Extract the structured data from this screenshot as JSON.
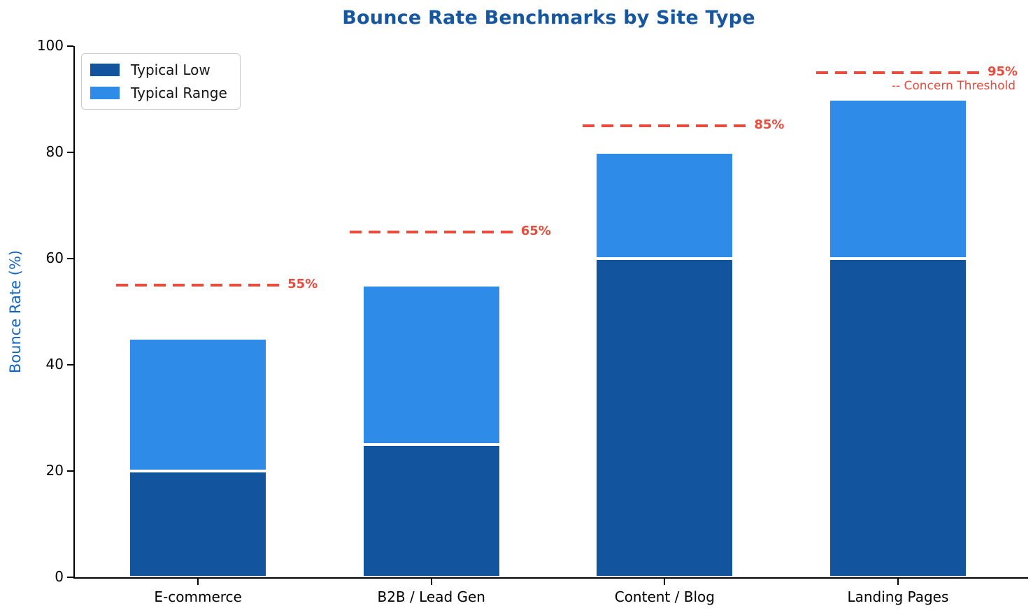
{
  "chart_data": {
    "type": "bar",
    "stacked": true,
    "title": "Bounce Rate Benchmarks by Site Type",
    "title_color": "#1657A0",
    "ylabel": "Bounce Rate (%)",
    "ylabel_color": "#1565C0",
    "xlabel": "",
    "ylim": [
      0,
      100
    ],
    "yticks": [
      0,
      20,
      40,
      60,
      80,
      100
    ],
    "grid": false,
    "axis_color": "#000000",
    "categories": [
      "E-commerce",
      "B2B / Lead Gen",
      "Content / Blog",
      "Landing Pages"
    ],
    "series": [
      {
        "name": "Typical Low",
        "color": "#12549E",
        "values": [
          20,
          25,
          60,
          60
        ]
      },
      {
        "name": "Typical Range",
        "color": "#2E8CE8",
        "values": [
          25,
          30,
          20,
          30
        ]
      }
    ],
    "bar_totals": [
      45,
      55,
      80,
      90
    ],
    "thresholds": {
      "color": "#E74C3C",
      "values": [
        55,
        65,
        85,
        95
      ],
      "labels": [
        "55%",
        "65%",
        "85%",
        "95%"
      ],
      "annotation": "-- Concern Threshold"
    },
    "legend": {
      "position": "upper-left"
    }
  }
}
